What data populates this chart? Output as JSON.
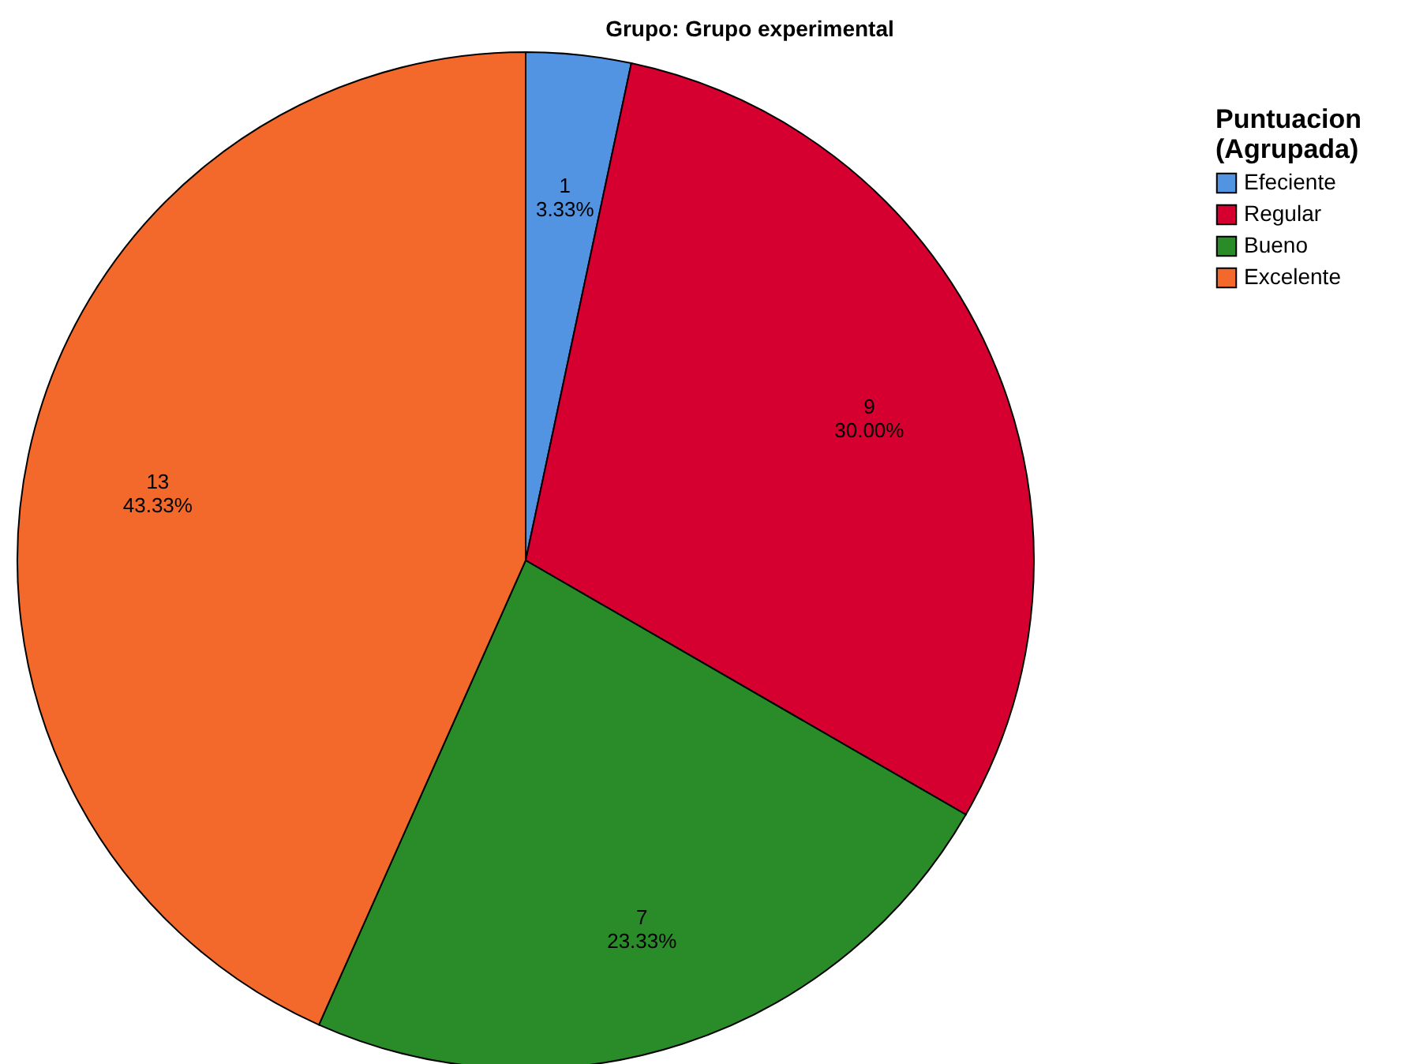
{
  "chart_data": {
    "type": "pie",
    "title": "Grupo: Grupo experimental",
    "legend_title": "Puntuacion\n(Agrupada)",
    "categories": [
      "Efeciente",
      "Regular",
      "Bueno",
      "Excelente"
    ],
    "values": [
      1,
      9,
      7,
      13
    ],
    "colors": [
      "#5294e2",
      "#d5002f",
      "#2a8b29",
      "#f3692c"
    ],
    "value_labels": [
      "1\n3.33%",
      "9\n30.00%",
      "7\n23.33%",
      "13\n43.33%"
    ],
    "legend": "top right"
  }
}
